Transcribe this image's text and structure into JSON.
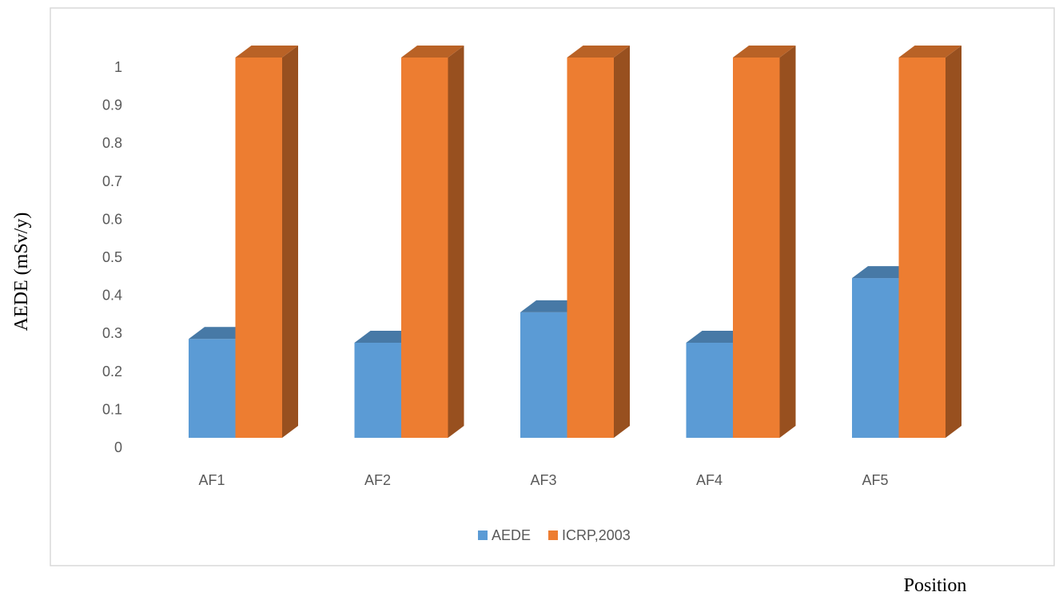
{
  "chart_data": {
    "type": "bar",
    "title": "",
    "xlabel": "Position",
    "ylabel": "AEDE (mSv/y)",
    "categories": [
      "AF1",
      "AF2",
      "AF3",
      "AF4",
      "AF5"
    ],
    "series": [
      {
        "name": "AEDE",
        "values": [
          0.26,
          0.25,
          0.33,
          0.25,
          0.42
        ],
        "color": "#5B9BD5"
      },
      {
        "name": "ICRP,2003",
        "values": [
          1,
          1,
          1,
          1,
          1
        ],
        "color": "#ED7D31"
      }
    ],
    "ylim": [
      0,
      1
    ],
    "yticks": [
      "0",
      "0.1",
      "0.2",
      "0.3",
      "0.4",
      "0.5",
      "0.6",
      "0.7",
      "0.8",
      "0.9",
      "1"
    ],
    "grid": false,
    "legend_position": "bottom",
    "style": "3d-column"
  }
}
